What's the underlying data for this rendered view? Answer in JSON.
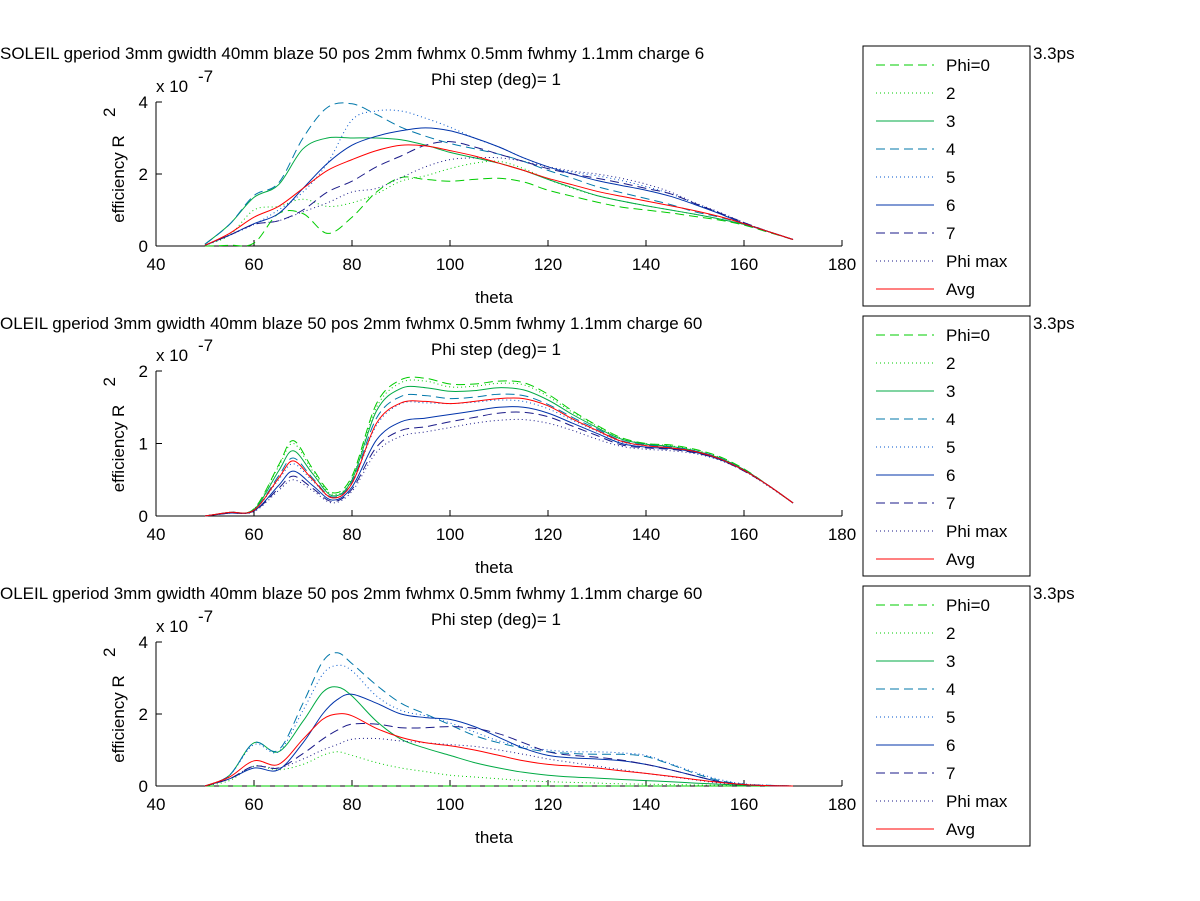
{
  "figure": {
    "background": "#ffffff"
  },
  "chart_data": [
    {
      "type": "line",
      "title": "SOLEIL gperiod 3mm gwidth 40mm blaze 50 pos 2mm fwhmx 0.5mm fwhmy 1.1mm charge 6",
      "title_tail": "3.3ps",
      "subtitle": "Phi step (deg)= 1",
      "xlabel": "theta",
      "ylabel": "efficiency R",
      "ylabel_sup": "2",
      "exponent_base": "x 10",
      "exponent_sup": "-7",
      "xlim": [
        40,
        180
      ],
      "ylim": [
        0,
        4
      ],
      "xticks": [
        "40",
        "60",
        "80",
        "100",
        "120",
        "140",
        "160",
        "180"
      ],
      "yticks": [
        "0",
        "2",
        "4"
      ],
      "legend_position": "right-outside",
      "x": [
        50,
        55,
        60,
        65,
        70,
        75,
        80,
        85,
        90,
        95,
        100,
        105,
        110,
        115,
        120,
        125,
        130,
        135,
        140,
        145,
        150,
        155,
        160,
        165,
        170
      ],
      "series": [
        {
          "name": "Phi=0",
          "color": "#00cc00",
          "dash": "9,5",
          "values": [
            0.0,
            0.02,
            0.08,
            0.9,
            0.9,
            0.35,
            0.8,
            1.5,
            1.9,
            1.85,
            1.8,
            1.85,
            1.88,
            1.78,
            1.55,
            1.38,
            1.22,
            1.08,
            1.0,
            0.92,
            0.82,
            0.72,
            0.58,
            0.38,
            0.18
          ]
        },
        {
          "name": "2",
          "color": "#00cc00",
          "dash": "1,3",
          "values": [
            0.02,
            0.3,
            1.0,
            1.1,
            1.3,
            1.1,
            1.2,
            1.45,
            1.8,
            1.95,
            2.15,
            2.3,
            2.35,
            2.15,
            1.85,
            1.6,
            1.4,
            1.25,
            1.12,
            1.0,
            0.88,
            0.75,
            0.6,
            0.4,
            0.18
          ]
        },
        {
          "name": "3",
          "color": "#00aa44",
          "dash": "",
          "values": [
            0.05,
            0.6,
            1.35,
            1.7,
            2.7,
            3.0,
            3.0,
            3.0,
            2.95,
            2.8,
            2.6,
            2.45,
            2.3,
            2.1,
            1.85,
            1.62,
            1.4,
            1.25,
            1.12,
            1.0,
            0.88,
            0.75,
            0.6,
            0.4,
            0.18
          ]
        },
        {
          "name": "4",
          "color": "#0077aa",
          "dash": "9,5",
          "values": [
            0.05,
            0.6,
            1.4,
            1.75,
            3.0,
            3.85,
            3.95,
            3.65,
            3.3,
            3.05,
            2.85,
            2.7,
            2.55,
            2.35,
            2.1,
            1.88,
            1.65,
            1.48,
            1.32,
            1.15,
            0.95,
            0.8,
            0.62,
            0.4,
            0.18
          ]
        },
        {
          "name": "5",
          "color": "#0055cc",
          "dash": "1,3",
          "values": [
            0.02,
            0.3,
            0.6,
            1.0,
            1.5,
            2.3,
            3.5,
            3.75,
            3.75,
            3.55,
            3.3,
            3.0,
            2.75,
            2.45,
            2.2,
            2.05,
            1.95,
            1.82,
            1.65,
            1.45,
            1.18,
            0.92,
            0.65,
            0.4,
            0.18
          ]
        },
        {
          "name": "6",
          "color": "#0033aa",
          "dash": "",
          "values": [
            0.02,
            0.3,
            0.62,
            0.9,
            1.6,
            2.3,
            2.8,
            3.05,
            3.2,
            3.28,
            3.2,
            3.0,
            2.75,
            2.45,
            2.2,
            2.0,
            1.82,
            1.68,
            1.55,
            1.38,
            1.15,
            0.9,
            0.62,
            0.4,
            0.18
          ]
        },
        {
          "name": "7",
          "color": "#1a1a88",
          "dash": "9,5",
          "values": [
            0.02,
            0.3,
            0.6,
            0.7,
            1.0,
            1.5,
            1.8,
            2.2,
            2.5,
            2.8,
            2.9,
            2.75,
            2.55,
            2.35,
            2.15,
            2.0,
            1.88,
            1.75,
            1.6,
            1.45,
            1.18,
            0.92,
            0.65,
            0.4,
            0.18
          ]
        },
        {
          "name": "Phi max",
          "color": "#1a1a88",
          "dash": "1,3",
          "values": [
            0.02,
            0.3,
            0.6,
            0.7,
            0.95,
            1.2,
            1.5,
            1.6,
            1.9,
            2.2,
            2.4,
            2.45,
            2.45,
            2.35,
            2.2,
            2.08,
            2.0,
            1.88,
            1.72,
            1.5,
            1.2,
            0.94,
            0.65,
            0.4,
            0.18
          ]
        },
        {
          "name": "Avg",
          "color": "#ff0000",
          "dash": "",
          "values": [
            0.02,
            0.35,
            0.8,
            1.1,
            1.6,
            2.1,
            2.4,
            2.65,
            2.8,
            2.78,
            2.65,
            2.5,
            2.3,
            2.1,
            1.88,
            1.7,
            1.52,
            1.38,
            1.25,
            1.12,
            0.98,
            0.82,
            0.62,
            0.4,
            0.18
          ]
        }
      ]
    },
    {
      "type": "line",
      "title": "OLEIL gperiod 3mm gwidth 40mm blaze 50 pos 2mm fwhmx 0.5mm fwhmy 1.1mm charge 60",
      "title_tail": "3.3ps",
      "subtitle": "Phi step (deg)= 1",
      "xlabel": "theta",
      "ylabel": "efficiency R",
      "ylabel_sup": "2",
      "exponent_base": "x 10",
      "exponent_sup": "-7",
      "xlim": [
        40,
        180
      ],
      "ylim": [
        0,
        2
      ],
      "xticks": [
        "40",
        "60",
        "80",
        "100",
        "120",
        "140",
        "160",
        "180"
      ],
      "yticks": [
        "0",
        "1",
        "2"
      ],
      "legend_position": "right-outside",
      "x": [
        50,
        55,
        60,
        65,
        68,
        72,
        76,
        80,
        85,
        90,
        95,
        100,
        105,
        110,
        115,
        120,
        125,
        130,
        135,
        140,
        145,
        150,
        155,
        160,
        165,
        170
      ],
      "series": [
        {
          "name": "Phi=0",
          "color": "#00cc00",
          "dash": "9,5",
          "values": [
            0.0,
            0.05,
            0.1,
            0.7,
            1.04,
            0.65,
            0.32,
            0.55,
            1.55,
            1.88,
            1.9,
            1.82,
            1.82,
            1.86,
            1.84,
            1.68,
            1.45,
            1.25,
            1.08,
            1.0,
            0.98,
            0.92,
            0.82,
            0.65,
            0.42,
            0.18
          ]
        },
        {
          "name": "2",
          "color": "#00cc00",
          "dash": "1,3",
          "values": [
            0.0,
            0.05,
            0.1,
            0.68,
            1.0,
            0.62,
            0.3,
            0.52,
            1.5,
            1.84,
            1.86,
            1.78,
            1.79,
            1.83,
            1.81,
            1.65,
            1.43,
            1.24,
            1.07,
            1.0,
            0.97,
            0.91,
            0.81,
            0.64,
            0.42,
            0.18
          ]
        },
        {
          "name": "3",
          "color": "#00aa44",
          "dash": "",
          "values": [
            0.0,
            0.05,
            0.09,
            0.62,
            0.9,
            0.58,
            0.28,
            0.5,
            1.45,
            1.76,
            1.77,
            1.72,
            1.73,
            1.77,
            1.74,
            1.6,
            1.4,
            1.22,
            1.06,
            0.99,
            0.96,
            0.9,
            0.8,
            0.64,
            0.42,
            0.18
          ]
        },
        {
          "name": "4",
          "color": "#0077aa",
          "dash": "9,5",
          "values": [
            0.0,
            0.05,
            0.08,
            0.55,
            0.8,
            0.52,
            0.26,
            0.47,
            1.35,
            1.65,
            1.66,
            1.62,
            1.64,
            1.68,
            1.66,
            1.54,
            1.36,
            1.2,
            1.04,
            0.98,
            0.95,
            0.9,
            0.8,
            0.63,
            0.42,
            0.18
          ]
        },
        {
          "name": "5",
          "color": "#0055cc",
          "dash": "1,3",
          "values": [
            0.0,
            0.05,
            0.08,
            0.5,
            0.72,
            0.48,
            0.25,
            0.45,
            1.25,
            1.55,
            1.56,
            1.55,
            1.57,
            1.6,
            1.58,
            1.48,
            1.32,
            1.17,
            1.02,
            0.97,
            0.94,
            0.89,
            0.79,
            0.63,
            0.42,
            0.18
          ]
        },
        {
          "name": "6",
          "color": "#0033aa",
          "dash": "",
          "values": [
            0.0,
            0.04,
            0.07,
            0.42,
            0.62,
            0.42,
            0.22,
            0.4,
            1.05,
            1.3,
            1.35,
            1.4,
            1.45,
            1.5,
            1.5,
            1.42,
            1.28,
            1.14,
            1.0,
            0.95,
            0.93,
            0.88,
            0.78,
            0.63,
            0.42,
            0.18
          ]
        },
        {
          "name": "7",
          "color": "#1a1a88",
          "dash": "9,5",
          "values": [
            0.0,
            0.04,
            0.07,
            0.38,
            0.55,
            0.38,
            0.2,
            0.37,
            0.95,
            1.18,
            1.23,
            1.3,
            1.36,
            1.42,
            1.43,
            1.37,
            1.24,
            1.11,
            0.98,
            0.94,
            0.92,
            0.87,
            0.78,
            0.62,
            0.42,
            0.18
          ]
        },
        {
          "name": "Phi max",
          "color": "#1a1a88",
          "dash": "1,3",
          "values": [
            0.0,
            0.04,
            0.06,
            0.35,
            0.5,
            0.35,
            0.18,
            0.34,
            0.88,
            1.1,
            1.16,
            1.22,
            1.28,
            1.32,
            1.33,
            1.28,
            1.18,
            1.06,
            0.96,
            0.92,
            0.9,
            0.86,
            0.77,
            0.62,
            0.41,
            0.18
          ]
        },
        {
          "name": "Avg",
          "color": "#ff0000",
          "dash": "",
          "values": [
            0.0,
            0.05,
            0.08,
            0.52,
            0.76,
            0.5,
            0.25,
            0.45,
            1.28,
            1.56,
            1.58,
            1.55,
            1.58,
            1.62,
            1.62,
            1.52,
            1.34,
            1.18,
            1.03,
            0.97,
            0.94,
            0.89,
            0.79,
            0.63,
            0.42,
            0.18
          ]
        }
      ]
    },
    {
      "type": "line",
      "title": "OLEIL gperiod 3mm gwidth 40mm blaze 50 pos 2mm fwhmx 0.5mm fwhmy 1.1mm charge 60",
      "title_tail": "3.3ps",
      "subtitle": "Phi step (deg)= 1",
      "xlabel": "theta",
      "ylabel": "efficiency R",
      "ylabel_sup": "2",
      "exponent_base": "x 10",
      "exponent_sup": "-7",
      "xlim": [
        40,
        180
      ],
      "ylim": [
        0,
        4
      ],
      "xticks": [
        "40",
        "60",
        "80",
        "100",
        "120",
        "140",
        "160",
        "180"
      ],
      "yticks": [
        "0",
        "2",
        "4"
      ],
      "legend_position": "right-outside",
      "x": [
        50,
        55,
        60,
        65,
        70,
        74,
        77,
        80,
        85,
        90,
        95,
        100,
        105,
        110,
        115,
        120,
        125,
        130,
        135,
        140,
        145,
        150,
        155,
        160,
        165,
        170
      ],
      "series": [
        {
          "name": "Phi=0",
          "color": "#00cc00",
          "dash": "9,5",
          "values": [
            0,
            0,
            0,
            0,
            0,
            0,
            0,
            0,
            0,
            0,
            0,
            0,
            0,
            0,
            0,
            0,
            0,
            0,
            0,
            0,
            0,
            0,
            0,
            0,
            0,
            0
          ]
        },
        {
          "name": "2",
          "color": "#00cc00",
          "dash": "1,3",
          "values": [
            0.0,
            0.15,
            0.55,
            0.45,
            0.6,
            0.85,
            0.95,
            0.85,
            0.65,
            0.5,
            0.4,
            0.3,
            0.25,
            0.2,
            0.15,
            0.12,
            0.1,
            0.08,
            0.06,
            0.05,
            0.04,
            0.03,
            0.02,
            0.01,
            0.01,
            0.0
          ]
        },
        {
          "name": "3",
          "color": "#00aa44",
          "dash": "",
          "values": [
            0.0,
            0.3,
            1.2,
            0.95,
            1.8,
            2.6,
            2.75,
            2.5,
            1.8,
            1.3,
            1.05,
            0.85,
            0.65,
            0.5,
            0.38,
            0.3,
            0.25,
            0.22,
            0.18,
            0.15,
            0.12,
            0.08,
            0.05,
            0.02,
            0.01,
            0.0
          ]
        },
        {
          "name": "4",
          "color": "#0077aa",
          "dash": "9,5",
          "values": [
            0.0,
            0.3,
            1.2,
            1.0,
            2.3,
            3.45,
            3.7,
            3.4,
            2.8,
            2.3,
            2.0,
            1.7,
            1.4,
            1.2,
            1.05,
            0.95,
            0.9,
            0.88,
            0.88,
            0.82,
            0.6,
            0.35,
            0.15,
            0.05,
            0.02,
            0.0
          ]
        },
        {
          "name": "5",
          "color": "#0055cc",
          "dash": "1,3",
          "values": [
            0.0,
            0.3,
            1.15,
            0.95,
            2.1,
            3.1,
            3.35,
            3.2,
            2.5,
            2.1,
            1.95,
            1.75,
            1.5,
            1.25,
            1.1,
            1.0,
            0.95,
            0.95,
            0.92,
            0.85,
            0.62,
            0.38,
            0.18,
            0.06,
            0.02,
            0.0
          ]
        },
        {
          "name": "6",
          "color": "#0033aa",
          "dash": "",
          "values": [
            0.0,
            0.2,
            0.5,
            0.45,
            1.2,
            2.0,
            2.4,
            2.55,
            2.3,
            2.0,
            1.9,
            1.85,
            1.65,
            1.35,
            1.05,
            0.85,
            0.78,
            0.75,
            0.7,
            0.6,
            0.45,
            0.28,
            0.12,
            0.04,
            0.01,
            0.0
          ]
        },
        {
          "name": "7",
          "color": "#1a1a88",
          "dash": "9,5",
          "values": [
            0.0,
            0.2,
            0.55,
            0.5,
            0.9,
            1.3,
            1.55,
            1.72,
            1.72,
            1.62,
            1.62,
            1.65,
            1.6,
            1.45,
            1.2,
            0.95,
            0.85,
            0.8,
            0.72,
            0.6,
            0.45,
            0.28,
            0.12,
            0.04,
            0.01,
            0.0
          ]
        },
        {
          "name": "Phi max",
          "color": "#1a1a88",
          "dash": "1,3",
          "values": [
            0.0,
            0.2,
            0.55,
            0.5,
            0.75,
            1.0,
            1.15,
            1.3,
            1.32,
            1.25,
            1.2,
            1.15,
            1.1,
            1.0,
            0.88,
            0.75,
            0.65,
            0.55,
            0.45,
            0.35,
            0.26,
            0.17,
            0.08,
            0.03,
            0.01,
            0.0
          ]
        },
        {
          "name": "Avg",
          "color": "#ff0000",
          "dash": "",
          "values": [
            0.0,
            0.25,
            0.7,
            0.6,
            1.3,
            1.85,
            2.0,
            1.95,
            1.6,
            1.35,
            1.2,
            1.12,
            1.0,
            0.85,
            0.7,
            0.6,
            0.55,
            0.5,
            0.42,
            0.35,
            0.27,
            0.18,
            0.1,
            0.04,
            0.01,
            0.0
          ]
        }
      ]
    }
  ]
}
